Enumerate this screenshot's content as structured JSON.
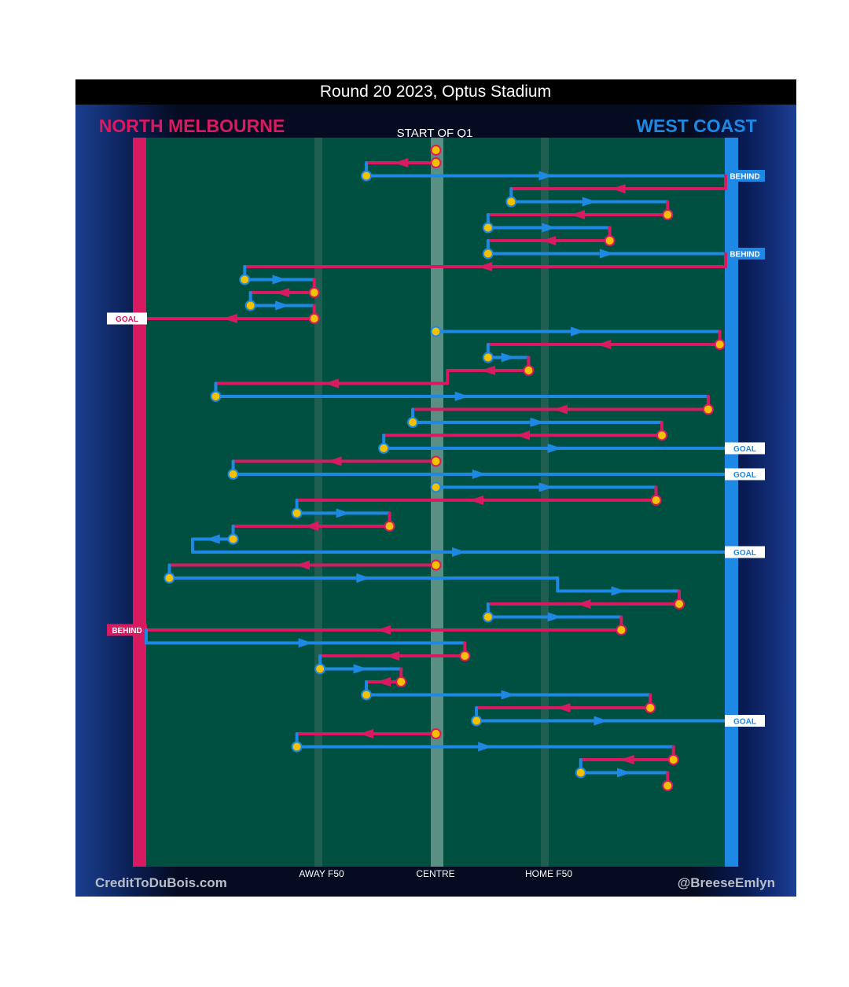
{
  "title": "Round 20 2023, Optus Stadium",
  "teams": {
    "home": {
      "name": "NORTH MELBOURNE",
      "color": "#d81b60"
    },
    "away": {
      "name": "WEST COAST",
      "color": "#1e88e5"
    }
  },
  "period_label": "START OF Q1",
  "footer": {
    "left": "CreditToDuBois.com",
    "right": "@BreeseEmlyn"
  },
  "colors": {
    "field": "#005041",
    "ball_point": "#f2c200",
    "behind_box_bg": "#ffffff"
  },
  "chart_data": {
    "type": "line",
    "title": "Round 20 2023, Optus Stadium",
    "x_ticks": [
      {
        "label": "AWAY F50",
        "value": 0.31
      },
      {
        "label": "CENTRE",
        "value": 0.5
      },
      {
        "label": "HOME F50",
        "value": 0.69
      }
    ],
    "x_range": [
      0,
      1
    ],
    "series": [
      {
        "name": "NORTH MELBOURNE",
        "direction": "toward AWAY end"
      },
      {
        "name": "WEST COAST",
        "direction": "toward HOME end"
      }
    ],
    "chains": [
      {
        "team": "N",
        "start": 0.5,
        "end": 0.38
      },
      {
        "team": "W",
        "start": 0.38,
        "end": 1.0,
        "result": "BEHIND"
      },
      {
        "team": "N",
        "start": 1.0,
        "end": 0.63
      },
      {
        "team": "W",
        "start": 0.63,
        "end": 0.9
      },
      {
        "team": "N",
        "start": 0.9,
        "end": 0.59
      },
      {
        "team": "W",
        "start": 0.59,
        "end": 0.8
      },
      {
        "team": "N",
        "start": 0.8,
        "end": 0.59
      },
      {
        "team": "W",
        "start": 0.59,
        "end": 1.0,
        "result": "BEHIND"
      },
      {
        "team": "N",
        "start": 1.0,
        "end": 0.17
      },
      {
        "team": "W",
        "start": 0.17,
        "end": 0.29
      },
      {
        "team": "N",
        "start": 0.29,
        "end": 0.18
      },
      {
        "team": "W",
        "start": 0.18,
        "end": 0.29
      },
      {
        "team": "N",
        "start": 0.29,
        "end": 0.0,
        "result": "GOAL"
      },
      {
        "team": "W",
        "start": 0.5,
        "end": 0.99
      },
      {
        "team": "N",
        "start": 0.99,
        "end": 0.59
      },
      {
        "team": "W",
        "start": 0.59,
        "end": 0.66
      },
      {
        "team": "N",
        "start": 0.66,
        "end": 0.52
      },
      {
        "team": "N",
        "start": 0.52,
        "end": 0.12
      },
      {
        "team": "W",
        "start": 0.12,
        "end": 0.97
      },
      {
        "team": "N",
        "start": 0.97,
        "end": 0.46
      },
      {
        "team": "W",
        "start": 0.46,
        "end": 0.89
      },
      {
        "team": "N",
        "start": 0.89,
        "end": 0.41
      },
      {
        "team": "W",
        "start": 0.41,
        "end": 1.0,
        "result": "GOAL"
      },
      {
        "team": "N",
        "start": 0.5,
        "end": 0.15
      },
      {
        "team": "W",
        "start": 0.15,
        "end": 1.0,
        "result": "GOAL"
      },
      {
        "team": "W",
        "start": 0.5,
        "end": 0.88
      },
      {
        "team": "N",
        "start": 0.88,
        "end": 0.26
      },
      {
        "team": "W",
        "start": 0.26,
        "end": 0.42
      },
      {
        "team": "N",
        "start": 0.42,
        "end": 0.15
      },
      {
        "team": "W",
        "start": 0.15,
        "end": 0.08
      },
      {
        "team": "W",
        "start": 0.08,
        "end": 1.0,
        "result": "GOAL"
      },
      {
        "team": "N",
        "start": 0.5,
        "end": 0.04
      },
      {
        "team": "W",
        "start": 0.04,
        "end": 0.71
      },
      {
        "team": "W",
        "start": 0.71,
        "end": 0.92
      },
      {
        "team": "N",
        "start": 0.92,
        "end": 0.59
      },
      {
        "team": "W",
        "start": 0.59,
        "end": 0.82
      },
      {
        "team": "N",
        "start": 0.82,
        "end": 0.0,
        "result": "BEHIND"
      },
      {
        "team": "W",
        "start": 0.0,
        "end": 0.55
      },
      {
        "team": "N",
        "start": 0.55,
        "end": 0.3
      },
      {
        "team": "W",
        "start": 0.3,
        "end": 0.44
      },
      {
        "team": "N",
        "start": 0.44,
        "end": 0.38
      },
      {
        "team": "W",
        "start": 0.38,
        "end": 0.87
      },
      {
        "team": "N",
        "start": 0.87,
        "end": 0.57
      },
      {
        "team": "W",
        "start": 0.57,
        "end": 1.0,
        "result": "GOAL"
      },
      {
        "team": "N",
        "start": 0.5,
        "end": 0.26
      },
      {
        "team": "W",
        "start": 0.26,
        "end": 0.91
      },
      {
        "team": "N",
        "start": 0.91,
        "end": 0.75
      },
      {
        "team": "W",
        "start": 0.75,
        "end": 0.9
      },
      {
        "team": "N",
        "start": 0.9,
        "end": 0.9
      }
    ]
  }
}
